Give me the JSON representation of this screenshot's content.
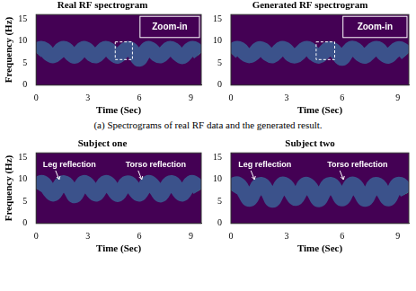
{
  "captions": [
    "(a) Spectrograms of real RF data and the generated result."
  ],
  "chart_data": [
    {
      "type": "line",
      "title": "Real RF spectrogram",
      "xlabel": "Time (Sec)",
      "ylabel": "Frequency (Hz)",
      "xlim": [
        0,
        9.6
      ],
      "ylim": [
        0,
        16
      ],
      "xticks": [
        0,
        3,
        6,
        9
      ],
      "yticks": [
        0,
        5,
        10,
        15
      ],
      "grid": false,
      "zoom_in": {
        "label": "Zoom-in",
        "x": [
          4.6,
          5.6
        ],
        "y": [
          5.8,
          9.8
        ]
      },
      "x": [
        0,
        0.25,
        0.5,
        0.75,
        1,
        1.25,
        1.5,
        1.75,
        2,
        2.25,
        2.5,
        2.75,
        3,
        3.25,
        3.5,
        3.75,
        4,
        4.25,
        4.5,
        4.75,
        5,
        5.25,
        5.5,
        5.75,
        6,
        6.25,
        6.5,
        6.75,
        7,
        7.25,
        7.5,
        7.75,
        8,
        8.25,
        8.5,
        8.75,
        9,
        9.25,
        9.5
      ],
      "series": [
        {
          "name": "Real RF",
          "color": "#fde725",
          "values": [
            7.5,
            8.4,
            8.1,
            7.0,
            6.6,
            7.3,
            8.3,
            8.2,
            7.1,
            6.5,
            7.4,
            8.4,
            8.0,
            6.9,
            6.6,
            7.5,
            8.4,
            8.1,
            7.0,
            6.5,
            7.4,
            8.3,
            8.2,
            7.0,
            5.8,
            7.2,
            8.4,
            8.0,
            6.9,
            6.6,
            7.5,
            8.4,
            8.1,
            7.0,
            6.4,
            7.3,
            8.3,
            8.2,
            7.1
          ]
        }
      ]
    },
    {
      "type": "line",
      "title": "Generated RF spectrogram",
      "xlabel": "Time (Sec)",
      "xlim": [
        0,
        9.6
      ],
      "ylim": [
        0,
        16
      ],
      "xticks": [
        0,
        3,
        6,
        9
      ],
      "yticks": [
        0,
        5,
        10,
        15
      ],
      "grid": false,
      "zoom_in": {
        "label": "Zoom-in",
        "x": [
          4.6,
          5.6
        ],
        "y": [
          5.8,
          9.8
        ]
      },
      "x": [
        0,
        0.25,
        0.5,
        0.75,
        1,
        1.25,
        1.5,
        1.75,
        2,
        2.25,
        2.5,
        2.75,
        3,
        3.25,
        3.5,
        3.75,
        4,
        4.25,
        4.5,
        4.75,
        5,
        5.25,
        5.5,
        5.75,
        6,
        6.25,
        6.5,
        6.75,
        7,
        7.25,
        7.5,
        7.75,
        8,
        8.25,
        8.5,
        8.75,
        9,
        9.25,
        9.5
      ],
      "series": [
        {
          "name": "Generated RF",
          "color": "#fde725",
          "values": [
            7.4,
            8.3,
            8.2,
            7.1,
            6.6,
            7.2,
            8.3,
            8.1,
            7.0,
            6.6,
            7.5,
            8.4,
            8.0,
            6.8,
            6.6,
            7.4,
            8.3,
            8.2,
            7.0,
            6.5,
            7.3,
            8.3,
            8.1,
            7.1,
            6.0,
            7.3,
            8.4,
            8.1,
            6.9,
            6.5,
            7.4,
            8.3,
            8.2,
            7.0,
            6.5,
            7.4,
            8.3,
            8.1,
            7.0
          ]
        }
      ]
    },
    {
      "type": "line",
      "title": "Subject one",
      "xlabel": "Time (Sec)",
      "ylabel": "Frequency (Hz)",
      "xlim": [
        0,
        9.6
      ],
      "ylim": [
        0,
        16
      ],
      "xticks": [
        0,
        3,
        6,
        9
      ],
      "yticks": [
        0,
        5,
        10,
        15
      ],
      "grid": false,
      "annotations": [
        {
          "text": "Leg reflection",
          "x": 0.4,
          "y": 13.2
        },
        {
          "text": "Torso reflection",
          "x": 5.2,
          "y": 13.2
        }
      ],
      "x": [
        0,
        0.25,
        0.5,
        0.75,
        1,
        1.25,
        1.5,
        1.75,
        2,
        2.25,
        2.5,
        2.75,
        3,
        3.25,
        3.5,
        3.75,
        4,
        4.25,
        4.5,
        4.75,
        5,
        5.25,
        5.5,
        5.75,
        6,
        6.25,
        6.5,
        6.75,
        7,
        7.25,
        7.5,
        7.75,
        8,
        8.25,
        8.5,
        8.75,
        9,
        9.25,
        9.5
      ],
      "series": [
        {
          "name": "Subject one",
          "color": "#fde725",
          "values": [
            8.0,
            9.3,
            9.0,
            7.5,
            6.6,
            7.8,
            9.2,
            9.1,
            7.6,
            6.2,
            7.7,
            9.3,
            8.9,
            7.4,
            6.6,
            7.9,
            9.3,
            9.0,
            7.5,
            6.5,
            7.8,
            9.2,
            9.0,
            7.4,
            6.6,
            7.9,
            9.3,
            8.9,
            7.5,
            6.4,
            7.8,
            9.2,
            9.1,
            7.5,
            6.6,
            7.9,
            9.3,
            9.0,
            7.6
          ]
        }
      ]
    },
    {
      "type": "line",
      "title": "Subject two",
      "xlabel": "Time (Sec)",
      "xlim": [
        0,
        9.6
      ],
      "ylim": [
        0,
        16
      ],
      "xticks": [
        0,
        3,
        6,
        9
      ],
      "yticks": [
        0,
        5,
        10,
        15
      ],
      "grid": false,
      "annotations": [
        {
          "text": "Leg reflection",
          "x": 0.4,
          "y": 13.2
        },
        {
          "text": "Torso reflection",
          "x": 5.2,
          "y": 13.2
        }
      ],
      "x": [
        0,
        0.25,
        0.5,
        0.75,
        1,
        1.25,
        1.5,
        1.75,
        2,
        2.25,
        2.5,
        2.75,
        3,
        3.25,
        3.5,
        3.75,
        4,
        4.25,
        4.5,
        4.75,
        5,
        5.25,
        5.5,
        5.75,
        6,
        6.25,
        6.5,
        6.75,
        7,
        7.25,
        7.5,
        7.75,
        8,
        8.25,
        8.5,
        8.75,
        9,
        9.25,
        9.5
      ],
      "series": [
        {
          "name": "Subject two",
          "color": "#fde725",
          "values": [
            7.6,
            9.0,
            8.6,
            6.8,
            5.4,
            6.9,
            8.8,
            8.7,
            7.0,
            5.2,
            6.8,
            8.9,
            8.6,
            6.9,
            5.6,
            7.1,
            8.9,
            8.5,
            6.8,
            5.3,
            6.9,
            8.8,
            8.7,
            7.0,
            5.5,
            7.0,
            8.9,
            8.6,
            6.8,
            5.4,
            6.9,
            8.8,
            8.6,
            6.9,
            5.5,
            7.1,
            8.9,
            8.6,
            6.9
          ]
        }
      ]
    }
  ]
}
